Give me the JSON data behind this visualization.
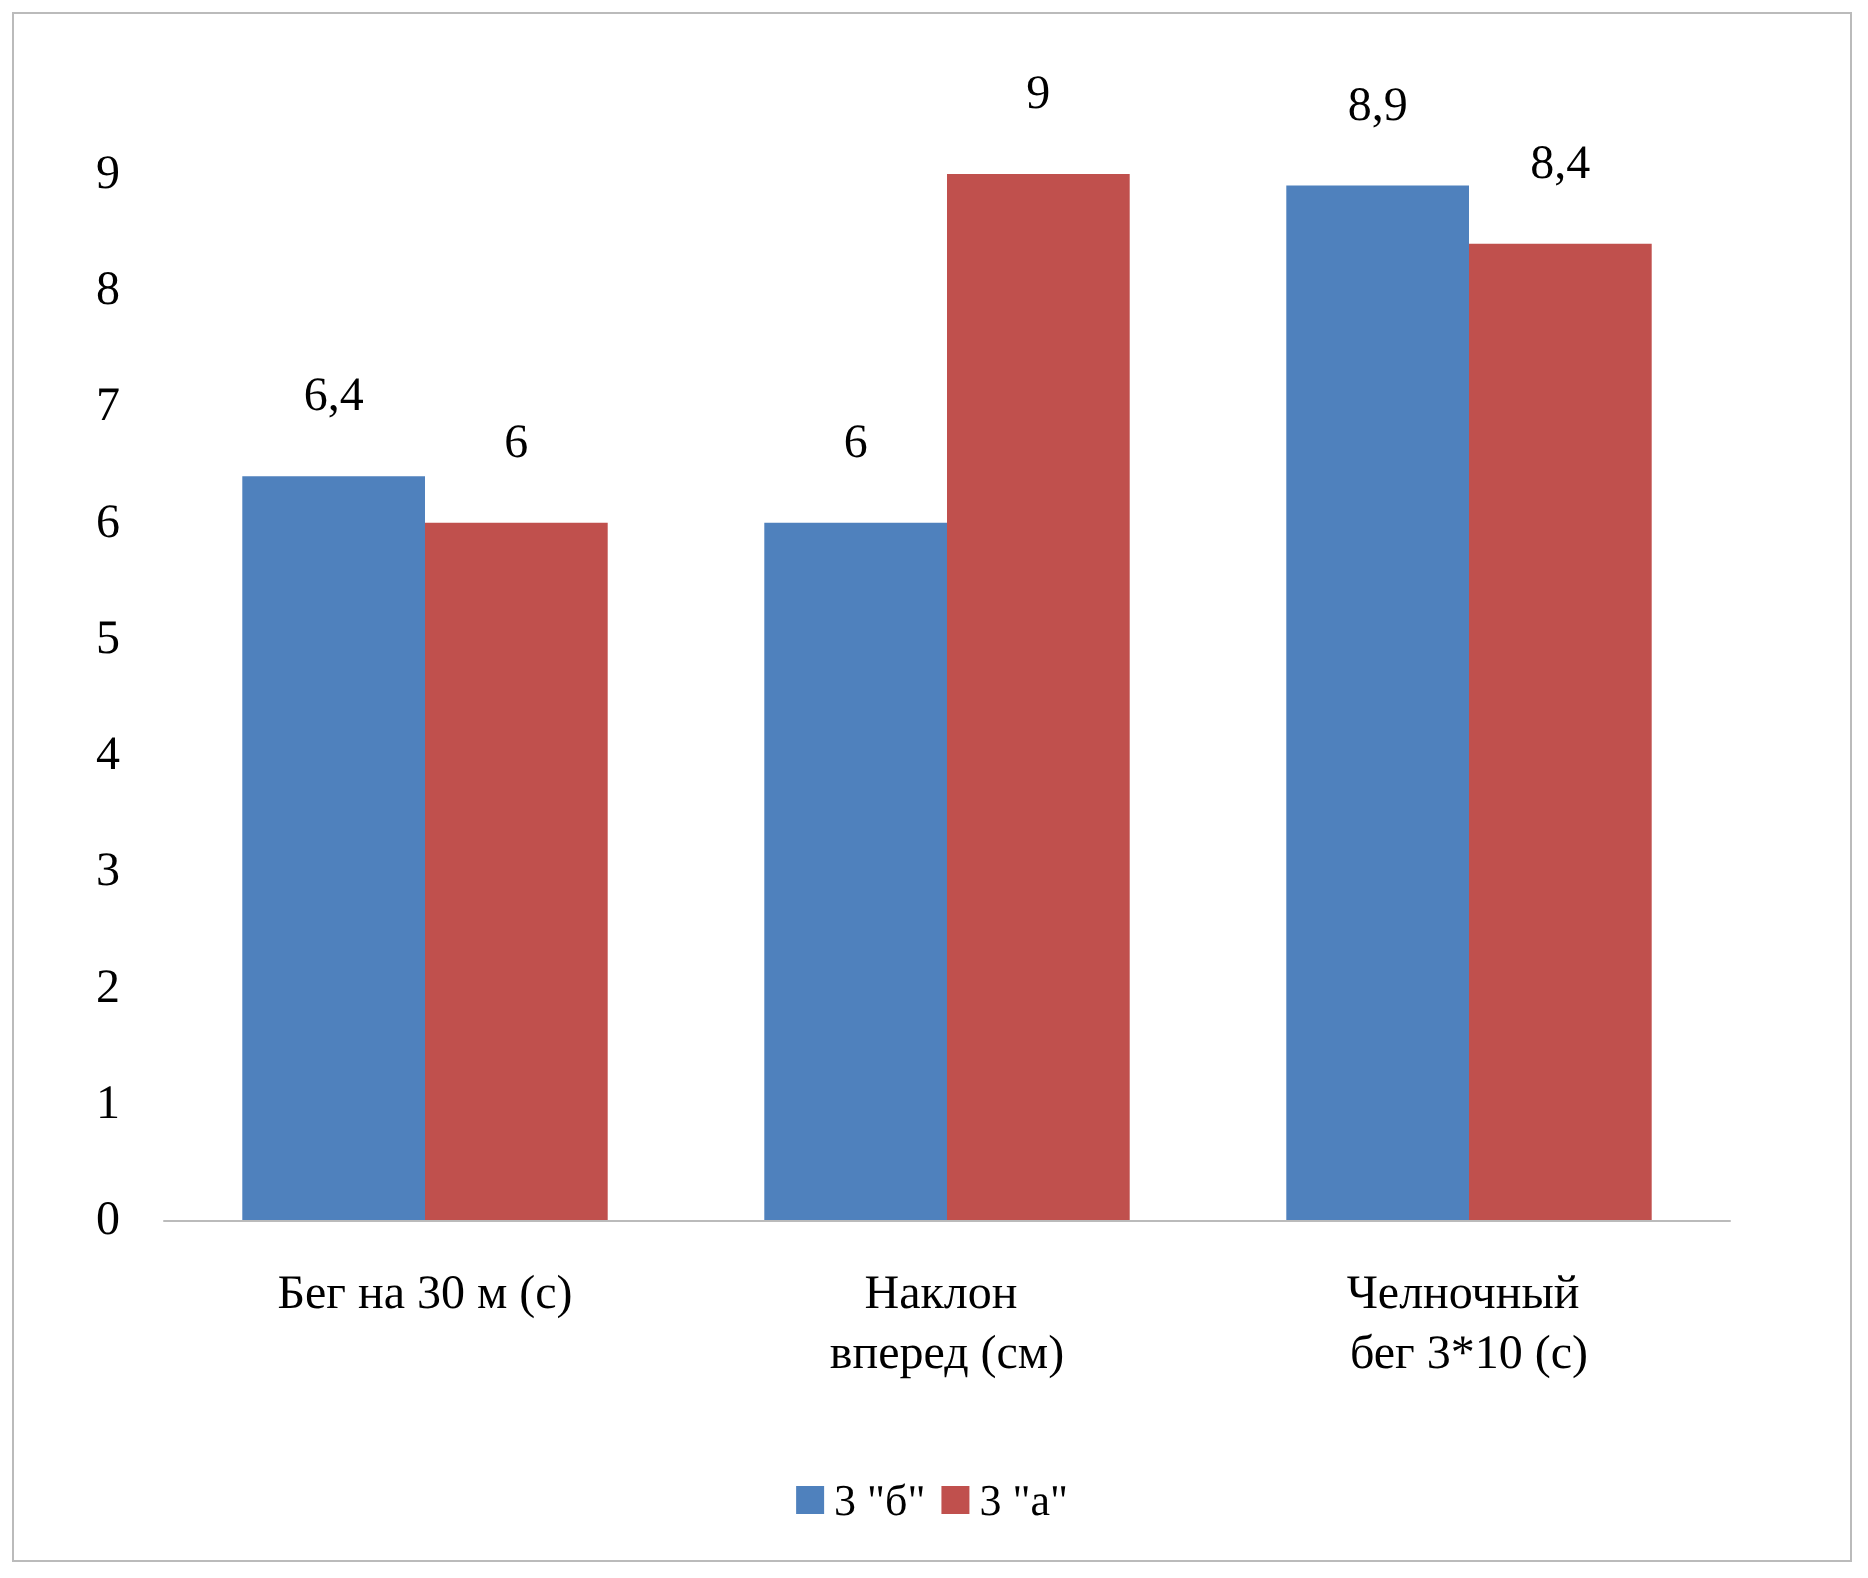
{
  "chart_data": {
    "type": "bar",
    "categories": [
      "Бег на 30 м (с)",
      "Наклон вперед (см)",
      "Челночный бег 3*10 (с)"
    ],
    "series": [
      {
        "name": "3 \"б\"",
        "color": "#4f81bd",
        "values": [
          6.4,
          6,
          8.9
        ],
        "value_labels": [
          "6,4",
          "6",
          "8,9"
        ]
      },
      {
        "name": "3 \"а\"",
        "color": "#c0504d",
        "values": [
          6,
          9,
          8.4
        ],
        "value_labels": [
          "6",
          "9",
          "8,4"
        ]
      }
    ],
    "ylim": [
      0,
      9
    ],
    "yticks": [
      0,
      1,
      2,
      3,
      4,
      5,
      6,
      7,
      8,
      9
    ],
    "grid": false,
    "legend": "bottom"
  }
}
